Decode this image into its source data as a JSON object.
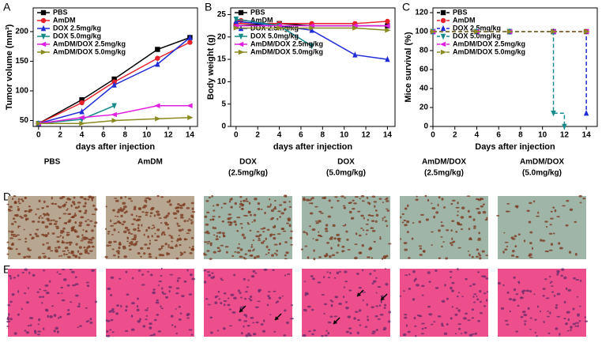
{
  "chart_data": [
    {
      "type": "line",
      "panel": "A",
      "ylabel": "Tumor volume (mm³)",
      "xlabel": "days after injection",
      "x": [
        0,
        4,
        7,
        11,
        14
      ],
      "xlim": [
        -0.5,
        14.7
      ],
      "xticks": [
        0,
        2,
        4,
        6,
        8,
        10,
        12,
        14
      ],
      "ylim": [
        40,
        240
      ],
      "yticks": [
        50,
        100,
        150,
        200
      ],
      "series": [
        {
          "name": "PBS",
          "color": "#000000",
          "marker": "square",
          "values": [
            45,
            85,
            120,
            170,
            190
          ]
        },
        {
          "name": "AmDM",
          "color": "#e8202a",
          "marker": "circle",
          "values": [
            45,
            80,
            115,
            155,
            182
          ]
        },
        {
          "name": "DOX 2.5mg/kg",
          "color": "#1f2bd6",
          "marker": "up",
          "values": [
            45,
            65,
            110,
            145,
            190
          ]
        },
        {
          "name": "DOX 5.0mg/kg",
          "color": "#178a8a",
          "marker": "down",
          "values": [
            45,
            52,
            75,
            null,
            null
          ]
        },
        {
          "name": "AmDM/DOX 2.5mg/kg",
          "color": "#e020e0",
          "marker": "left",
          "values": [
            45,
            55,
            60,
            75,
            75
          ]
        },
        {
          "name": "AmDM/DOX 5.0mg/kg",
          "color": "#8a8a20",
          "marker": "right",
          "values": [
            45,
            45,
            50,
            53,
            55
          ]
        }
      ]
    },
    {
      "type": "line",
      "panel": "B",
      "ylabel": "Body weight (g)",
      "xlabel": "days after injection",
      "x": [
        0,
        4,
        7,
        11,
        14
      ],
      "xlim": [
        -0.5,
        14.7
      ],
      "xticks": [
        0,
        2,
        4,
        6,
        8,
        10,
        12,
        14
      ],
      "ylim": [
        0,
        26.5
      ],
      "yticks": [
        0,
        5,
        10,
        15,
        20,
        25
      ],
      "series": [
        {
          "name": "PBS",
          "color": "#000000",
          "marker": "square",
          "values": [
            22.5,
            23,
            22.5,
            22.5,
            22.5
          ]
        },
        {
          "name": "AmDM",
          "color": "#e8202a",
          "marker": "circle",
          "values": [
            23,
            23,
            23,
            23,
            23.5
          ]
        },
        {
          "name": "DOX 2.5mg/kg",
          "color": "#1f2bd6",
          "marker": "up",
          "values": [
            23.5,
            22.5,
            21.5,
            16,
            15
          ]
        },
        {
          "name": "DOX 5.0mg/kg",
          "color": "#178a8a",
          "marker": "down",
          "values": [
            24,
            22.5,
            18,
            null,
            null
          ]
        },
        {
          "name": "AmDM/DOX 2.5mg/kg",
          "color": "#e020e0",
          "marker": "left",
          "values": [
            22.5,
            22.5,
            22.5,
            22.5,
            22.5
          ]
        },
        {
          "name": "AmDM/DOX 5.0mg/kg",
          "color": "#8a8a20",
          "marker": "right",
          "values": [
            22,
            22,
            22,
            22,
            21.5
          ]
        }
      ]
    },
    {
      "type": "step",
      "panel": "C",
      "ylabel": "Mice survival (%)",
      "xlabel": "Days after injection",
      "dashed": true,
      "xlim": [
        0,
        15
      ],
      "xticks": [
        0,
        2,
        4,
        6,
        8,
        10,
        12,
        14
      ],
      "ylim": [
        0,
        125
      ],
      "yticks": [
        0,
        20,
        40,
        60,
        80,
        100,
        120
      ],
      "series": [
        {
          "name": "PBS",
          "color": "#000000",
          "marker": "square",
          "x": [
            0,
            4,
            7,
            11,
            14
          ],
          "values": [
            100,
            100,
            100,
            100,
            100
          ]
        },
        {
          "name": "AmDM",
          "color": "#e8202a",
          "marker": "circle",
          "x": [
            0,
            4,
            7,
            11,
            14
          ],
          "values": [
            100,
            100,
            100,
            100,
            100
          ]
        },
        {
          "name": "DOX 2.5mg/kg",
          "color": "#1f2bd6",
          "marker": "up",
          "x": [
            0,
            4,
            7,
            11,
            14
          ],
          "values": [
            100,
            100,
            100,
            100,
            14
          ]
        },
        {
          "name": "DOX 5.0mg/kg",
          "color": "#178a8a",
          "marker": "down",
          "x": [
            0,
            4,
            7,
            11,
            12
          ],
          "values": [
            100,
            100,
            100,
            14,
            0
          ]
        },
        {
          "name": "AmDM/DOX 2.5mg/kg",
          "color": "#e020e0",
          "marker": "left",
          "x": [
            0,
            4,
            7,
            11,
            14
          ],
          "values": [
            100,
            100,
            100,
            100,
            100
          ]
        },
        {
          "name": "AmDM/DOX 5.0mg/kg",
          "color": "#8a8a20",
          "marker": "right",
          "x": [
            0,
            4,
            7,
            11,
            14
          ],
          "values": [
            100,
            100,
            100,
            100,
            100
          ]
        }
      ]
    }
  ],
  "images": {
    "rows": [
      "D",
      "E"
    ],
    "columns": [
      [
        "PBS"
      ],
      [
        "AmDM"
      ],
      [
        "DOX",
        "(2.5mg/kg)"
      ],
      [
        "DOX",
        "(5.0mg/kg)"
      ],
      [
        "AmDM/DOX",
        "(2.5mg/kg)"
      ],
      [
        "AmDM/DOX",
        "(5.0mg/kg)"
      ]
    ]
  }
}
